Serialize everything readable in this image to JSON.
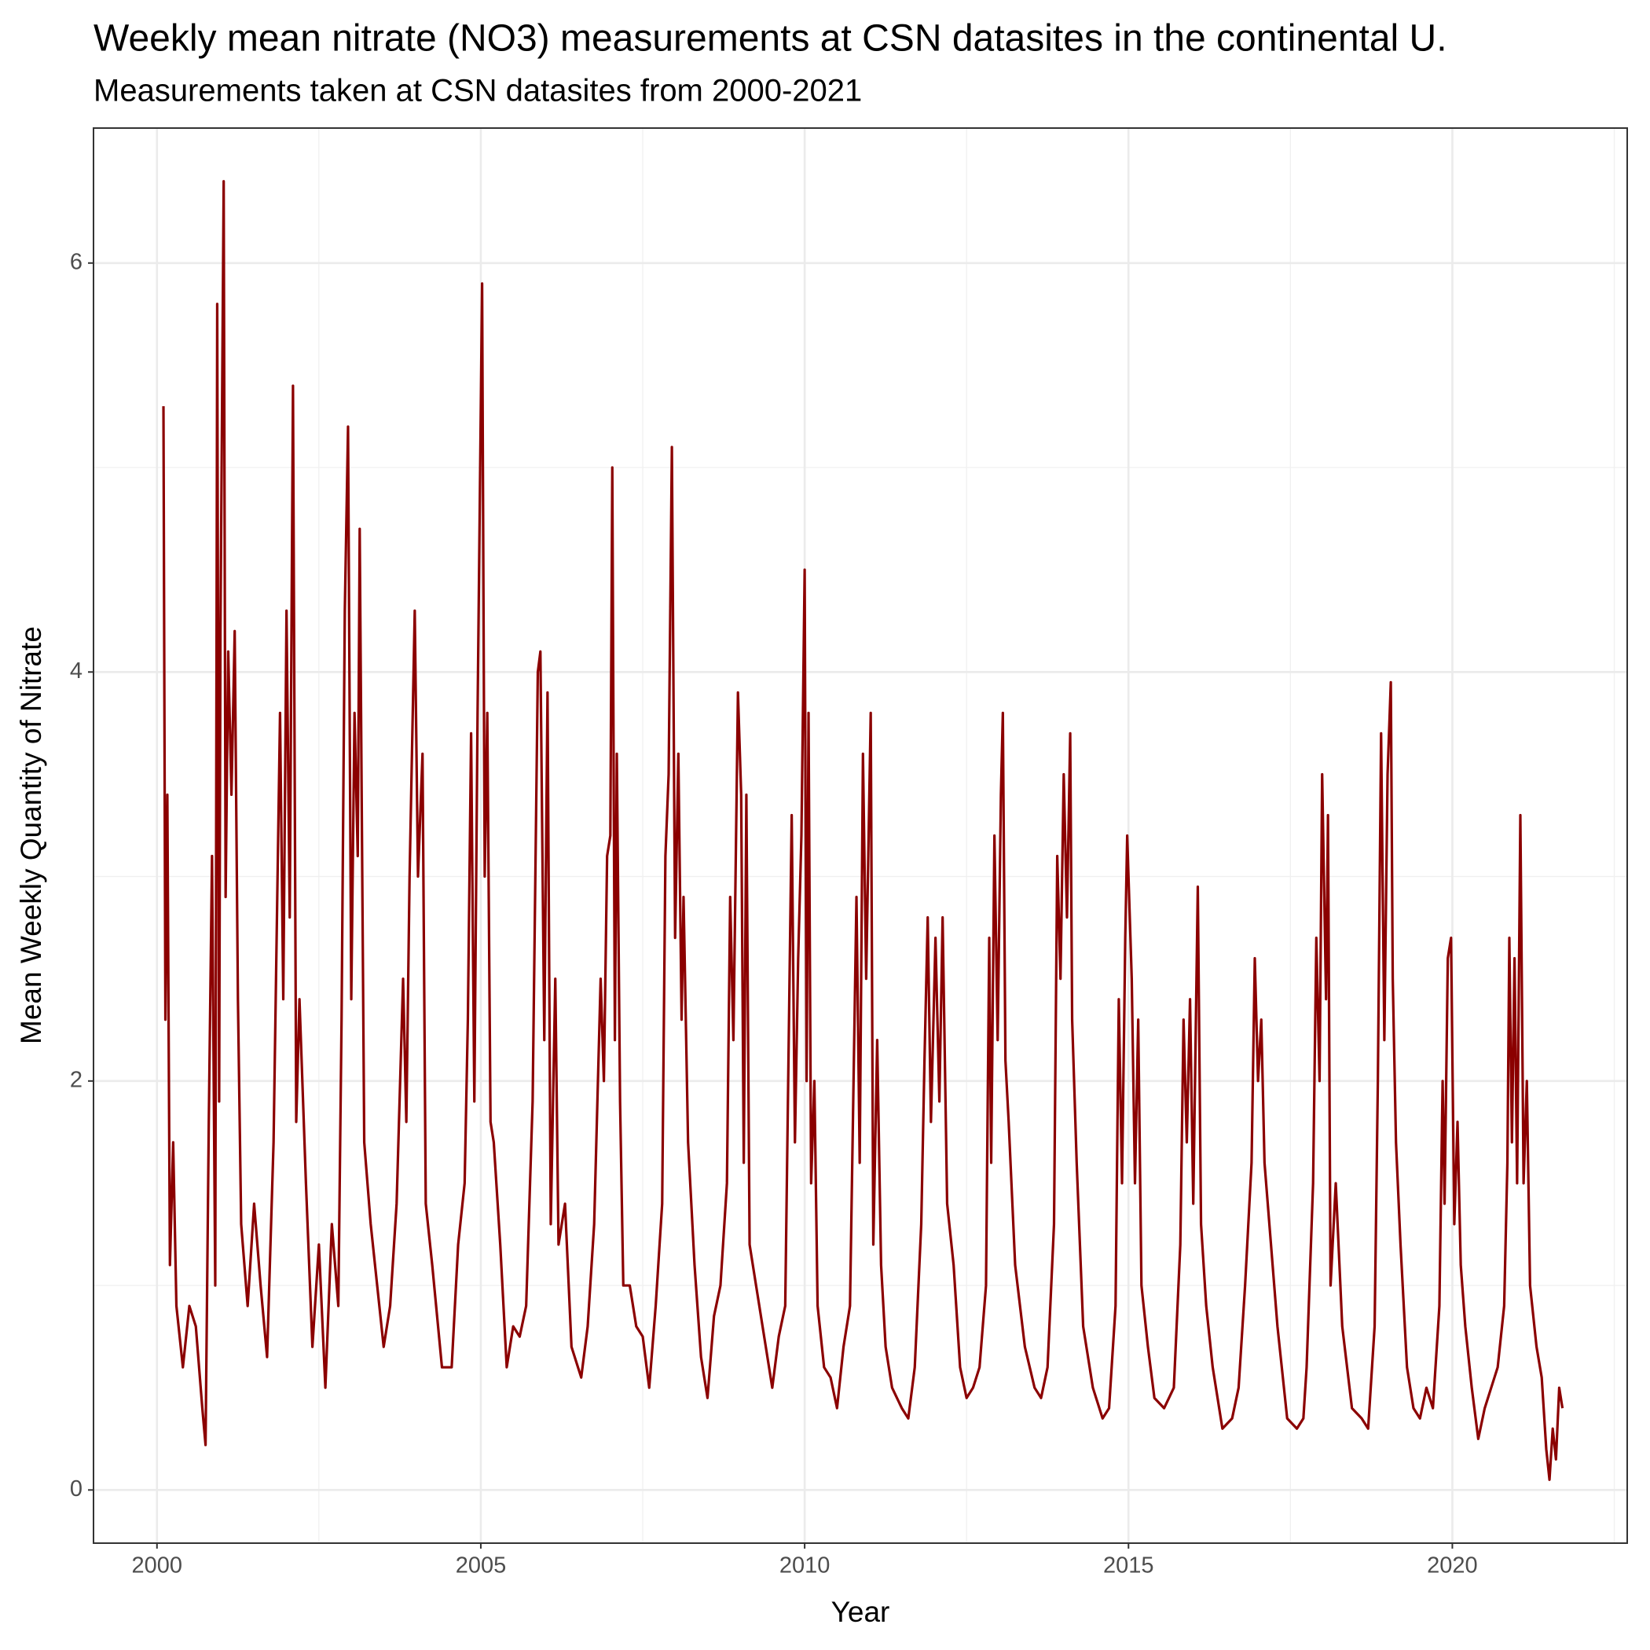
{
  "chart_data": {
    "type": "line",
    "title": "Weekly mean nitrate (NO3) measurements at CSN datasites in the continental U.",
    "subtitle": "Measurements taken at CSN datasites from 2000-2021",
    "xlabel": "Year",
    "ylabel": "Mean Weekly Quantity of Nitrate",
    "color": "#8b0000",
    "xlim": [
      1999.02,
      2022.7
    ],
    "ylim": [
      -0.26,
      6.66
    ],
    "xticks": [
      2000,
      2005,
      2010,
      2015,
      2020
    ],
    "yticks": [
      0,
      2,
      4,
      6
    ],
    "xminor": [
      2002.5,
      2007.5,
      2012.5,
      2017.5,
      2022.5
    ],
    "yminor": [
      1,
      3,
      5
    ],
    "grid": true,
    "x": [
      2000.1,
      2000.13,
      2000.16,
      2000.2,
      2000.25,
      2000.3,
      2000.4,
      2000.5,
      2000.6,
      2000.7,
      2000.75,
      2000.8,
      2000.85,
      2000.9,
      2000.93,
      2000.96,
      2000.98,
      2001.03,
      2001.06,
      2001.1,
      2001.15,
      2001.2,
      2001.25,
      2001.3,
      2001.4,
      2001.5,
      2001.6,
      2001.7,
      2001.8,
      2001.9,
      2001.95,
      2002.0,
      2002.05,
      2002.1,
      2002.15,
      2002.2,
      2002.3,
      2002.4,
      2002.5,
      2002.6,
      2002.7,
      2002.8,
      2002.85,
      2002.9,
      2002.95,
      2003.0,
      2003.05,
      2003.1,
      2003.13,
      2003.2,
      2003.3,
      2003.4,
      2003.5,
      2003.6,
      2003.7,
      2003.8,
      2003.85,
      2003.9,
      2003.98,
      2004.03,
      2004.1,
      2004.15,
      2004.25,
      2004.4,
      2004.55,
      2004.65,
      2004.75,
      2004.8,
      2004.85,
      2004.9,
      2004.95,
      2005.02,
      2005.06,
      2005.1,
      2005.15,
      2005.2,
      2005.3,
      2005.4,
      2005.5,
      2005.6,
      2005.7,
      2005.8,
      2005.88,
      2005.92,
      2005.98,
      2006.03,
      2006.08,
      2006.15,
      2006.2,
      2006.3,
      2006.4,
      2006.55,
      2006.65,
      2006.75,
      2006.85,
      2006.9,
      2006.95,
      2007.0,
      2007.03,
      2007.07,
      2007.1,
      2007.15,
      2007.2,
      2007.3,
      2007.4,
      2007.5,
      2007.6,
      2007.7,
      2007.8,
      2007.85,
      2007.9,
      2007.95,
      2008.0,
      2008.05,
      2008.1,
      2008.13,
      2008.2,
      2008.3,
      2008.4,
      2008.5,
      2008.6,
      2008.7,
      2008.8,
      2008.85,
      2008.9,
      2008.97,
      2009.02,
      2009.06,
      2009.1,
      2009.15,
      2009.25,
      2009.4,
      2009.5,
      2009.6,
      2009.7,
      2009.8,
      2009.85,
      2009.9,
      2009.95,
      2010.0,
      2010.03,
      2010.06,
      2010.1,
      2010.15,
      2010.2,
      2010.3,
      2010.4,
      2010.5,
      2010.6,
      2010.7,
      2010.8,
      2010.85,
      2010.9,
      2010.95,
      2011.02,
      2011.06,
      2011.12,
      2011.18,
      2011.25,
      2011.35,
      2011.5,
      2011.6,
      2011.7,
      2011.8,
      2011.85,
      2011.9,
      2011.95,
      2012.02,
      2012.08,
      2012.13,
      2012.2,
      2012.3,
      2012.4,
      2012.5,
      2012.6,
      2012.7,
      2012.8,
      2012.85,
      2012.88,
      2012.93,
      2012.98,
      2013.03,
      2013.06,
      2013.1,
      2013.15,
      2013.25,
      2013.4,
      2013.55,
      2013.65,
      2013.75,
      2013.85,
      2013.9,
      2013.95,
      2014.0,
      2014.05,
      2014.1,
      2014.13,
      2014.2,
      2014.3,
      2014.45,
      2014.6,
      2014.7,
      2014.8,
      2014.85,
      2014.9,
      2014.95,
      2014.98,
      2015.05,
      2015.1,
      2015.15,
      2015.2,
      2015.3,
      2015.4,
      2015.55,
      2015.7,
      2015.8,
      2015.85,
      2015.9,
      2015.95,
      2016.0,
      2016.07,
      2016.12,
      2016.2,
      2016.3,
      2016.45,
      2016.6,
      2016.7,
      2016.8,
      2016.9,
      2016.95,
      2017.0,
      2017.05,
      2017.1,
      2017.2,
      2017.3,
      2017.45,
      2017.6,
      2017.7,
      2017.75,
      2017.85,
      2017.9,
      2017.95,
      2017.99,
      2018.05,
      2018.08,
      2018.12,
      2018.2,
      2018.3,
      2018.45,
      2018.6,
      2018.7,
      2018.8,
      2018.85,
      2018.9,
      2018.95,
      2019.0,
      2019.05,
      2019.08,
      2019.13,
      2019.2,
      2019.3,
      2019.4,
      2019.5,
      2019.6,
      2019.7,
      2019.8,
      2019.85,
      2019.88,
      2019.93,
      2019.98,
      2020.03,
      2020.08,
      2020.13,
      2020.2,
      2020.3,
      2020.4,
      2020.5,
      2020.6,
      2020.7,
      2020.8,
      2020.85,
      2020.88,
      2020.92,
      2020.96,
      2021.0,
      2021.05,
      2021.1,
      2021.15,
      2021.2,
      2021.3,
      2021.38,
      2021.45,
      2021.5,
      2021.55,
      2021.6,
      2021.65,
      2021.7
    ],
    "values": [
      5.3,
      2.3,
      3.4,
      1.1,
      1.7,
      0.9,
      0.6,
      0.9,
      0.8,
      0.4,
      0.22,
      1.8,
      3.1,
      1.0,
      5.8,
      1.9,
      4.2,
      6.4,
      2.9,
      4.1,
      3.4,
      4.2,
      2.4,
      1.3,
      0.9,
      1.4,
      1.0,
      0.65,
      1.7,
      3.8,
      2.4,
      4.3,
      2.8,
      5.4,
      1.8,
      2.4,
      1.5,
      0.7,
      1.2,
      0.5,
      1.3,
      0.9,
      2.3,
      4.3,
      5.2,
      2.4,
      3.8,
      3.1,
      4.7,
      1.7,
      1.3,
      1.0,
      0.7,
      0.9,
      1.4,
      2.5,
      1.8,
      3.0,
      4.3,
      3.0,
      3.6,
      1.4,
      1.1,
      0.6,
      0.6,
      1.2,
      1.5,
      2.3,
      3.7,
      1.9,
      3.8,
      5.9,
      3.0,
      3.8,
      1.8,
      1.7,
      1.2,
      0.6,
      0.8,
      0.75,
      0.9,
      1.9,
      4.0,
      4.1,
      2.2,
      3.9,
      1.3,
      2.5,
      1.2,
      1.4,
      0.7,
      0.55,
      0.8,
      1.3,
      2.5,
      2.0,
      3.1,
      3.2,
      5.0,
      2.2,
      3.6,
      1.9,
      1.0,
      1.0,
      0.8,
      0.75,
      0.5,
      0.9,
      1.4,
      3.1,
      3.5,
      5.1,
      2.7,
      3.6,
      2.3,
      2.9,
      1.7,
      1.1,
      0.65,
      0.45,
      0.85,
      1.0,
      1.5,
      2.9,
      2.2,
      3.9,
      3.4,
      1.6,
      3.4,
      1.2,
      1.0,
      0.7,
      0.5,
      0.75,
      0.9,
      3.3,
      1.7,
      2.6,
      3.2,
      4.5,
      2.0,
      3.8,
      1.5,
      2.0,
      0.9,
      0.6,
      0.55,
      0.4,
      0.7,
      0.9,
      2.9,
      1.6,
      3.6,
      2.5,
      3.8,
      1.2,
      2.2,
      1.1,
      0.7,
      0.5,
      0.4,
      0.35,
      0.6,
      1.3,
      2.1,
      2.8,
      1.8,
      2.7,
      1.9,
      2.8,
      1.4,
      1.1,
      0.6,
      0.45,
      0.5,
      0.6,
      1.0,
      2.7,
      1.6,
      3.2,
      2.2,
      3.4,
      3.8,
      2.1,
      1.8,
      1.1,
      0.7,
      0.5,
      0.45,
      0.6,
      1.3,
      3.1,
      2.5,
      3.5,
      2.8,
      3.7,
      2.3,
      1.6,
      0.8,
      0.5,
      0.35,
      0.4,
      0.9,
      2.4,
      1.5,
      2.7,
      3.2,
      2.5,
      1.5,
      2.3,
      1.0,
      0.7,
      0.45,
      0.4,
      0.5,
      1.2,
      2.3,
      1.7,
      2.4,
      1.4,
      2.95,
      1.3,
      0.9,
      0.6,
      0.3,
      0.35,
      0.5,
      1.0,
      1.6,
      2.6,
      2.0,
      2.3,
      1.6,
      1.2,
      0.8,
      0.35,
      0.3,
      0.35,
      0.6,
      1.5,
      2.7,
      2.0,
      3.5,
      2.4,
      3.3,
      1.0,
      1.5,
      0.8,
      0.4,
      0.35,
      0.3,
      0.8,
      2.0,
      3.7,
      2.2,
      3.5,
      3.95,
      2.5,
      1.7,
      1.2,
      0.6,
      0.4,
      0.35,
      0.5,
      0.4,
      0.9,
      2.0,
      1.4,
      2.6,
      2.7,
      1.3,
      1.8,
      1.1,
      0.8,
      0.5,
      0.25,
      0.4,
      0.5,
      0.6,
      0.9,
      1.6,
      2.7,
      1.7,
      2.6,
      1.5,
      3.3,
      1.5,
      2.0,
      1.0,
      0.7,
      0.55,
      0.2,
      0.05,
      0.3,
      0.15,
      0.5,
      0.4
    ]
  }
}
